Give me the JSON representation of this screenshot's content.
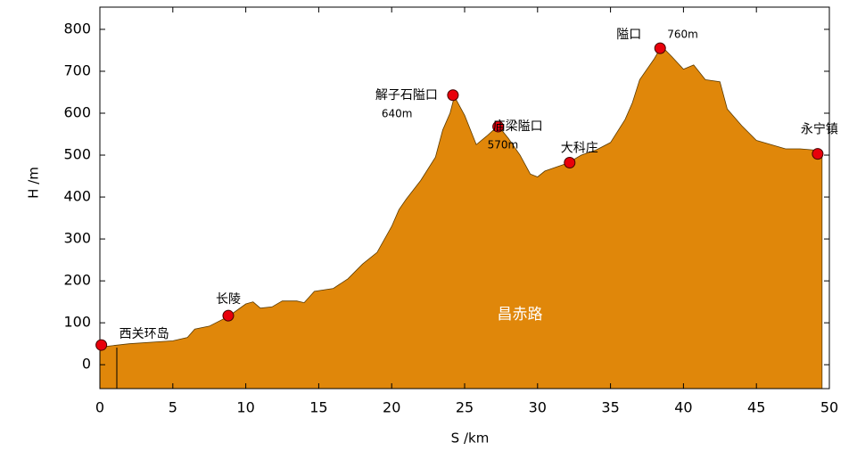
{
  "chart_data": {
    "type": "area",
    "x_label": "S  /km",
    "y_label": "H /m",
    "xlim": [
      0,
      50
    ],
    "ylim": [
      -57,
      853
    ],
    "xticks": [
      0,
      5,
      10,
      15,
      20,
      25,
      30,
      35,
      40,
      45,
      50
    ],
    "yticks": [
      0,
      100,
      200,
      300,
      400,
      500,
      600,
      700,
      800
    ],
    "color": "#e0870a",
    "x": [
      0,
      2,
      5,
      6,
      6.5,
      7.5,
      8.8,
      10,
      10.5,
      11,
      11.8,
      12.5,
      13.5,
      14,
      14.7,
      16,
      17,
      18,
      19,
      20,
      20.5,
      21,
      22,
      23,
      23.5,
      24,
      24.3,
      25,
      25.8,
      26.5,
      27.3,
      28,
      28.8,
      29.5,
      30,
      30.5,
      32,
      33,
      34,
      35,
      36,
      36.5,
      37,
      38,
      38.5,
      39.2,
      40,
      40.7,
      41.5,
      42.5,
      43,
      44,
      45,
      46,
      47,
      48,
      49,
      49.5
    ],
    "values": [
      42,
      50,
      57,
      65,
      85,
      92,
      115,
      145,
      150,
      135,
      138,
      152,
      152,
      148,
      175,
      182,
      205,
      240,
      268,
      330,
      370,
      395,
      440,
      495,
      560,
      600,
      640,
      595,
      525,
      545,
      570,
      540,
      500,
      455,
      448,
      462,
      480,
      500,
      512,
      530,
      585,
      625,
      680,
      730,
      760,
      735,
      705,
      715,
      680,
      675,
      610,
      570,
      535,
      525,
      515,
      515,
      512,
      505
    ],
    "points": [
      {
        "label": "西关环岛",
        "x": 0.1,
        "y": 47
      },
      {
        "label": "长陵",
        "x": 8.8,
        "y": 117
      },
      {
        "label": "解子石隘口",
        "elevation_label": "640m",
        "x": 24.2,
        "y": 643
      },
      {
        "label": "庙梁隘口",
        "elevation_label": "570m",
        "x": 27.3,
        "y": 568
      },
      {
        "label": "大科庄",
        "x": 32.2,
        "y": 482
      },
      {
        "label": "隘口",
        "elevation_label": "760m",
        "x": 38.4,
        "y": 755
      },
      {
        "label": "永宁镇",
        "x": 49.2,
        "y": 503
      }
    ],
    "point_color": "#e8000b",
    "region_label": "昌赤路"
  }
}
